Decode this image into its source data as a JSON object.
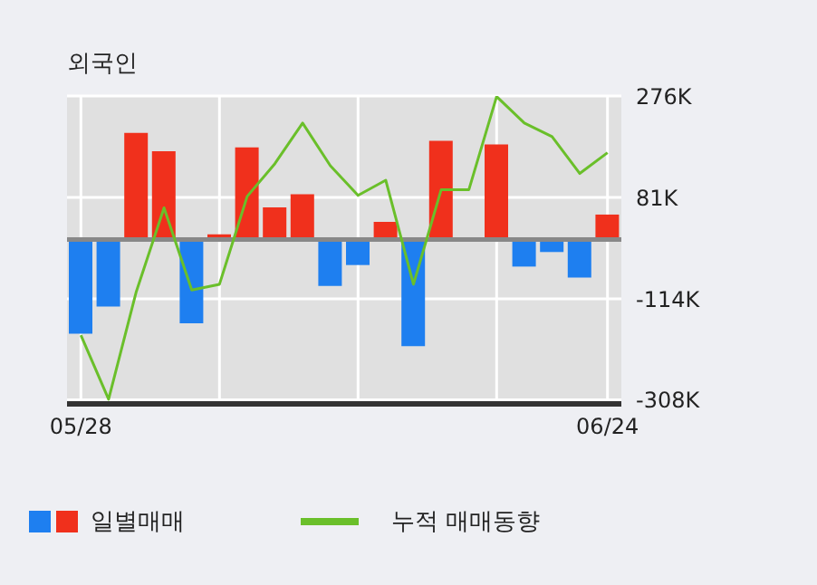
{
  "chart_data": {
    "type": "bar",
    "title": "외국인",
    "categories": [
      "05/28",
      null,
      null,
      null,
      null,
      null,
      null,
      null,
      null,
      null,
      null,
      null,
      null,
      null,
      null,
      null,
      null,
      null,
      null,
      "06/24"
    ],
    "series": [
      {
        "name": "일별매매",
        "colors": [
          "#1e7ff0",
          "#1e7ff0",
          "#f0301c",
          "#f0301c",
          "#1e7ff0",
          "#f0301c",
          "#f0301c",
          "#f0301c",
          "#f0301c",
          "#1e7ff0",
          "#1e7ff0",
          "#f0301c",
          "#1e7ff0",
          "#f0301c",
          "#f0301c",
          "#f0301c",
          "#1e7ff0",
          "#1e7ff0",
          "#1e7ff0",
          "#f0301c"
        ],
        "values": [
          -181000,
          -129000,
          205000,
          170000,
          -161000,
          10000,
          177000,
          62000,
          87000,
          -89000,
          -49000,
          34000,
          -205000,
          190000,
          0,
          183000,
          -52000,
          -24000,
          -73000,
          48000
        ]
      },
      {
        "name": "누적 매매동향",
        "type": "line",
        "color": "#6abf2a",
        "values": [
          -184000,
          -307000,
          -100000,
          61000,
          -97000,
          -86000,
          83000,
          146000,
          224000,
          142000,
          85000,
          114000,
          -86000,
          96000,
          96000,
          275000,
          224000,
          198000,
          127000,
          167000
        ]
      }
    ],
    "ylim": [
      -316000,
      276000
    ],
    "yticks": [
      {
        "value": 276000,
        "label": "276K"
      },
      {
        "value": 81000,
        "label": "81K"
      },
      {
        "value": -114000,
        "label": "-114K"
      },
      {
        "value": -308000,
        "label": "-308K"
      }
    ],
    "ref_lines": [
      {
        "axis": "y",
        "value": 0,
        "color": "#888888"
      }
    ],
    "grid": true,
    "legend": "bottom",
    "marker": "none"
  }
}
